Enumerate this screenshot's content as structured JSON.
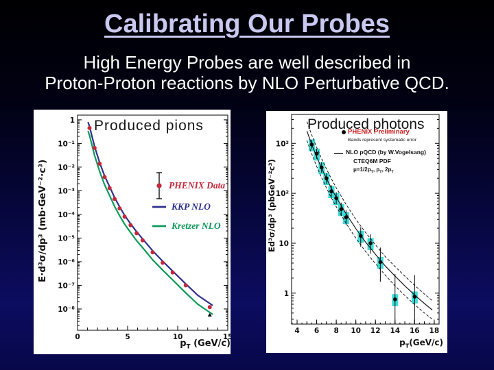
{
  "slide": {
    "title": "Calibrating Our Probes",
    "subtitle_line1": "High Energy Probes are well described in",
    "subtitle_line2": "Proton-Proton reactions by NLO Perturbative QCD.",
    "colors": {
      "title": "#c8c8f0",
      "subtitle": "#ffffff",
      "background_top": "#000002",
      "background_bottom": "#07074a"
    }
  },
  "chart_data": [
    {
      "id": "pions",
      "type": "scatter",
      "title": "Produced pions",
      "ylabel": "E·d³σ/dp³ (mb·GeV⁻²·c³)",
      "xlabel_rich": [
        {
          "t": "p"
        },
        {
          "t": "T",
          "s": "sub"
        },
        {
          "t": " (GeV/c)"
        }
      ],
      "xlim": [
        0,
        15
      ],
      "ylog_lim": [
        -8.9,
        0.2
      ],
      "xticks": [
        0,
        5,
        10,
        15
      ],
      "x_medium_step": 1,
      "yticks": [
        {
          "exp": 0,
          "label": "1"
        },
        {
          "exp": -1,
          "label": "10⁻¹"
        },
        {
          "exp": -2,
          "label": "10⁻²"
        },
        {
          "exp": -3,
          "label": "10⁻³"
        },
        {
          "exp": -4,
          "label": "10⁻⁴"
        },
        {
          "exp": -5,
          "label": "10⁻⁵"
        },
        {
          "exp": -6,
          "label": "10⁻⁶"
        },
        {
          "exp": -7,
          "label": "10⁻⁷"
        },
        {
          "exp": -8,
          "label": "10⁻⁸"
        }
      ],
      "geo": {
        "l": 64,
        "t": 8,
        "r": 283,
        "b": 322
      },
      "legend": [
        {
          "label": "PHENIX Data",
          "color": "#c4283a"
        },
        {
          "label": "KKP NLO",
          "color": "#2f2f8f"
        },
        {
          "label": "Kretzer NLO",
          "color": "#0c9a5a"
        }
      ],
      "series": [
        {
          "name": "KKP NLO",
          "kind": "curve",
          "color": "#2f2f8f",
          "width": 2.2,
          "x": [
            1.05,
            1.2,
            1.7,
            2.2,
            2.7,
            3.2,
            3.7,
            4.2,
            4.7,
            5.3,
            5.9,
            6.5,
            7.5,
            8.5,
            9.5,
            10.8,
            12,
            13.5
          ],
          "y": [
            0.8,
            0.52,
            0.075,
            0.016,
            0.0043,
            0.0015,
            0.00052,
            0.00021,
            9.2e-05,
            4e-05,
            1.85e-05,
            9.2e-06,
            2.9e-06,
            1.05e-06,
            4e-07,
            1.15e-07,
            3.8e-08,
            1.4e-08
          ]
        },
        {
          "name": "Kretzer NLO",
          "kind": "curve",
          "color": "#0c9a5a",
          "width": 2.2,
          "x": [
            1.05,
            1.2,
            1.7,
            2.2,
            2.7,
            3.2,
            3.7,
            4.2,
            4.7,
            5.3,
            5.9,
            6.5,
            7.5,
            8.5,
            9.5,
            10.8,
            12,
            13.5
          ],
          "y": [
            0.34,
            0.22,
            0.0315,
            0.0067,
            0.0018,
            0.00063,
            0.00022,
            8.8e-05,
            3.9e-05,
            1.7e-05,
            7.8e-06,
            3.9e-06,
            1.2e-06,
            4.4e-07,
            1.7e-07,
            4.8e-08,
            1.6e-08,
            5.9e-09
          ]
        },
        {
          "name": "PHENIX Data",
          "kind": "points",
          "color": "#c4283a",
          "r": 3,
          "x": [
            1.2,
            1.7,
            2.2,
            2.7,
            3.2,
            3.7,
            4.2,
            4.7,
            5.3,
            5.9,
            6.5,
            7.5,
            8.5,
            9.5,
            10.8,
            13.2
          ],
          "y": [
            0.45,
            0.065,
            0.014,
            0.0038,
            0.0013,
            0.00045,
            0.00018,
            8e-05,
            3.5e-05,
            1.6e-05,
            8e-06,
            2.5e-06,
            9e-07,
            3.5e-07,
            1e-07,
            1.2e-08
          ]
        }
      ],
      "extra_marks": [
        {
          "type": "triangle",
          "x": 13.2,
          "y": 5.5e-09
        }
      ]
    },
    {
      "id": "photons",
      "type": "scatter",
      "title": "Produced photons",
      "ylabel": "Ed³σ/dp³ (pbGeV⁻²c³)",
      "xlabel_rich": [
        {
          "t": "p"
        },
        {
          "t": "T",
          "s": "sub"
        },
        {
          "t": "(GeV/c)"
        }
      ],
      "xlim": [
        3.44,
        18.5
      ],
      "ylog_lim": [
        -0.62,
        3.58
      ],
      "xticks": [
        4,
        6,
        8,
        10,
        12,
        14,
        16,
        18
      ],
      "x_medium_step": 1,
      "x_minor_step": 0.5,
      "yticks": [
        {
          "exp": 3,
          "label": "10³"
        },
        {
          "exp": 2,
          "label": "10²"
        },
        {
          "exp": 1,
          "label": "10"
        },
        {
          "exp": 0,
          "label": "1"
        }
      ],
      "geo": {
        "l": 37,
        "t": 5,
        "r": 252,
        "b": 311
      },
      "annotations": {
        "preliminary": "PHENIX Preliminary",
        "preliminary_color": "#cc2222",
        "bands": "Bands represent systematic error",
        "nlo": "NLO pQCD (by W.Vogelsang)",
        "pdf": "CTEQ6M PDF",
        "scales_rich": [
          {
            "t": "μ=1/2p"
          },
          {
            "t": "T",
            "s": "sub"
          },
          {
            "t": ", p"
          },
          {
            "t": "T",
            "s": "sub"
          },
          {
            "t": ", 2p"
          },
          {
            "t": "T",
            "s": "sub"
          }
        ]
      },
      "series": [
        {
          "name": "NLO pQCD upper scale",
          "kind": "curve",
          "color": "#1a1a1a",
          "width": 1,
          "dash": "4 2.5",
          "x": [
            5.0,
            5.5,
            6,
            6.5,
            7,
            7.5,
            8,
            9,
            10,
            11,
            12,
            13,
            14,
            15,
            16,
            17,
            17.8
          ],
          "y": [
            2740,
            1470,
            837,
            496,
            307,
            195,
            129,
            60,
            30,
            16.3,
            9.3,
            5.4,
            3.4,
            2.2,
            1.43,
            0.96,
            0.71
          ]
        },
        {
          "name": "NLO pQCD central",
          "kind": "curve",
          "color": "#1a1a1a",
          "width": 1.2,
          "x": [
            5.0,
            5.5,
            6,
            6.5,
            7,
            7.5,
            8,
            9,
            10,
            11,
            12,
            13,
            14,
            15,
            16,
            17,
            17.8
          ],
          "y": [
            1770,
            950,
            540,
            320,
            198,
            126,
            83,
            39,
            19.5,
            10.5,
            6.0,
            3.5,
            2.2,
            1.4,
            0.92,
            0.62,
            0.46
          ]
        },
        {
          "name": "NLO pQCD lower scale",
          "kind": "curve",
          "color": "#1a1a1a",
          "width": 1,
          "dash": "4 2.5",
          "x": [
            5.0,
            5.5,
            6,
            6.5,
            7,
            7.5,
            8,
            9,
            10,
            11,
            12,
            13,
            14,
            15,
            16,
            17,
            17.8
          ],
          "y": [
            1142,
            613,
            348,
            206,
            128,
            81,
            54,
            25,
            12.6,
            6.8,
            3.9,
            2.3,
            1.4,
            0.9,
            0.59,
            0.4,
            0.3
          ]
        },
        {
          "name": "PHENIX Preliminary",
          "kind": "points-sys",
          "color": "#000000",
          "box_color": "#3cdcd8",
          "sys_frac": 0.27,
          "r": 2.8,
          "x": [
            5.5,
            6.0,
            6.5,
            7.0,
            7.5,
            8.0,
            8.5,
            9.0,
            10.5,
            11.5,
            12.5,
            14,
            16
          ],
          "y": [
            950,
            620,
            330,
            200,
            110,
            80,
            48,
            33,
            14,
            10,
            4.2,
            0.75,
            0.85
          ],
          "lo": [
            760,
            490,
            260,
            155,
            82,
            60,
            35,
            23,
            8.5,
            6.2,
            1.7,
            0.1,
            0.27
          ],
          "hi": [
            1180,
            780,
            420,
            255,
            145,
            105,
            65,
            46,
            21,
            15,
            8.2,
            2.4,
            2.3
          ]
        }
      ]
    }
  ]
}
